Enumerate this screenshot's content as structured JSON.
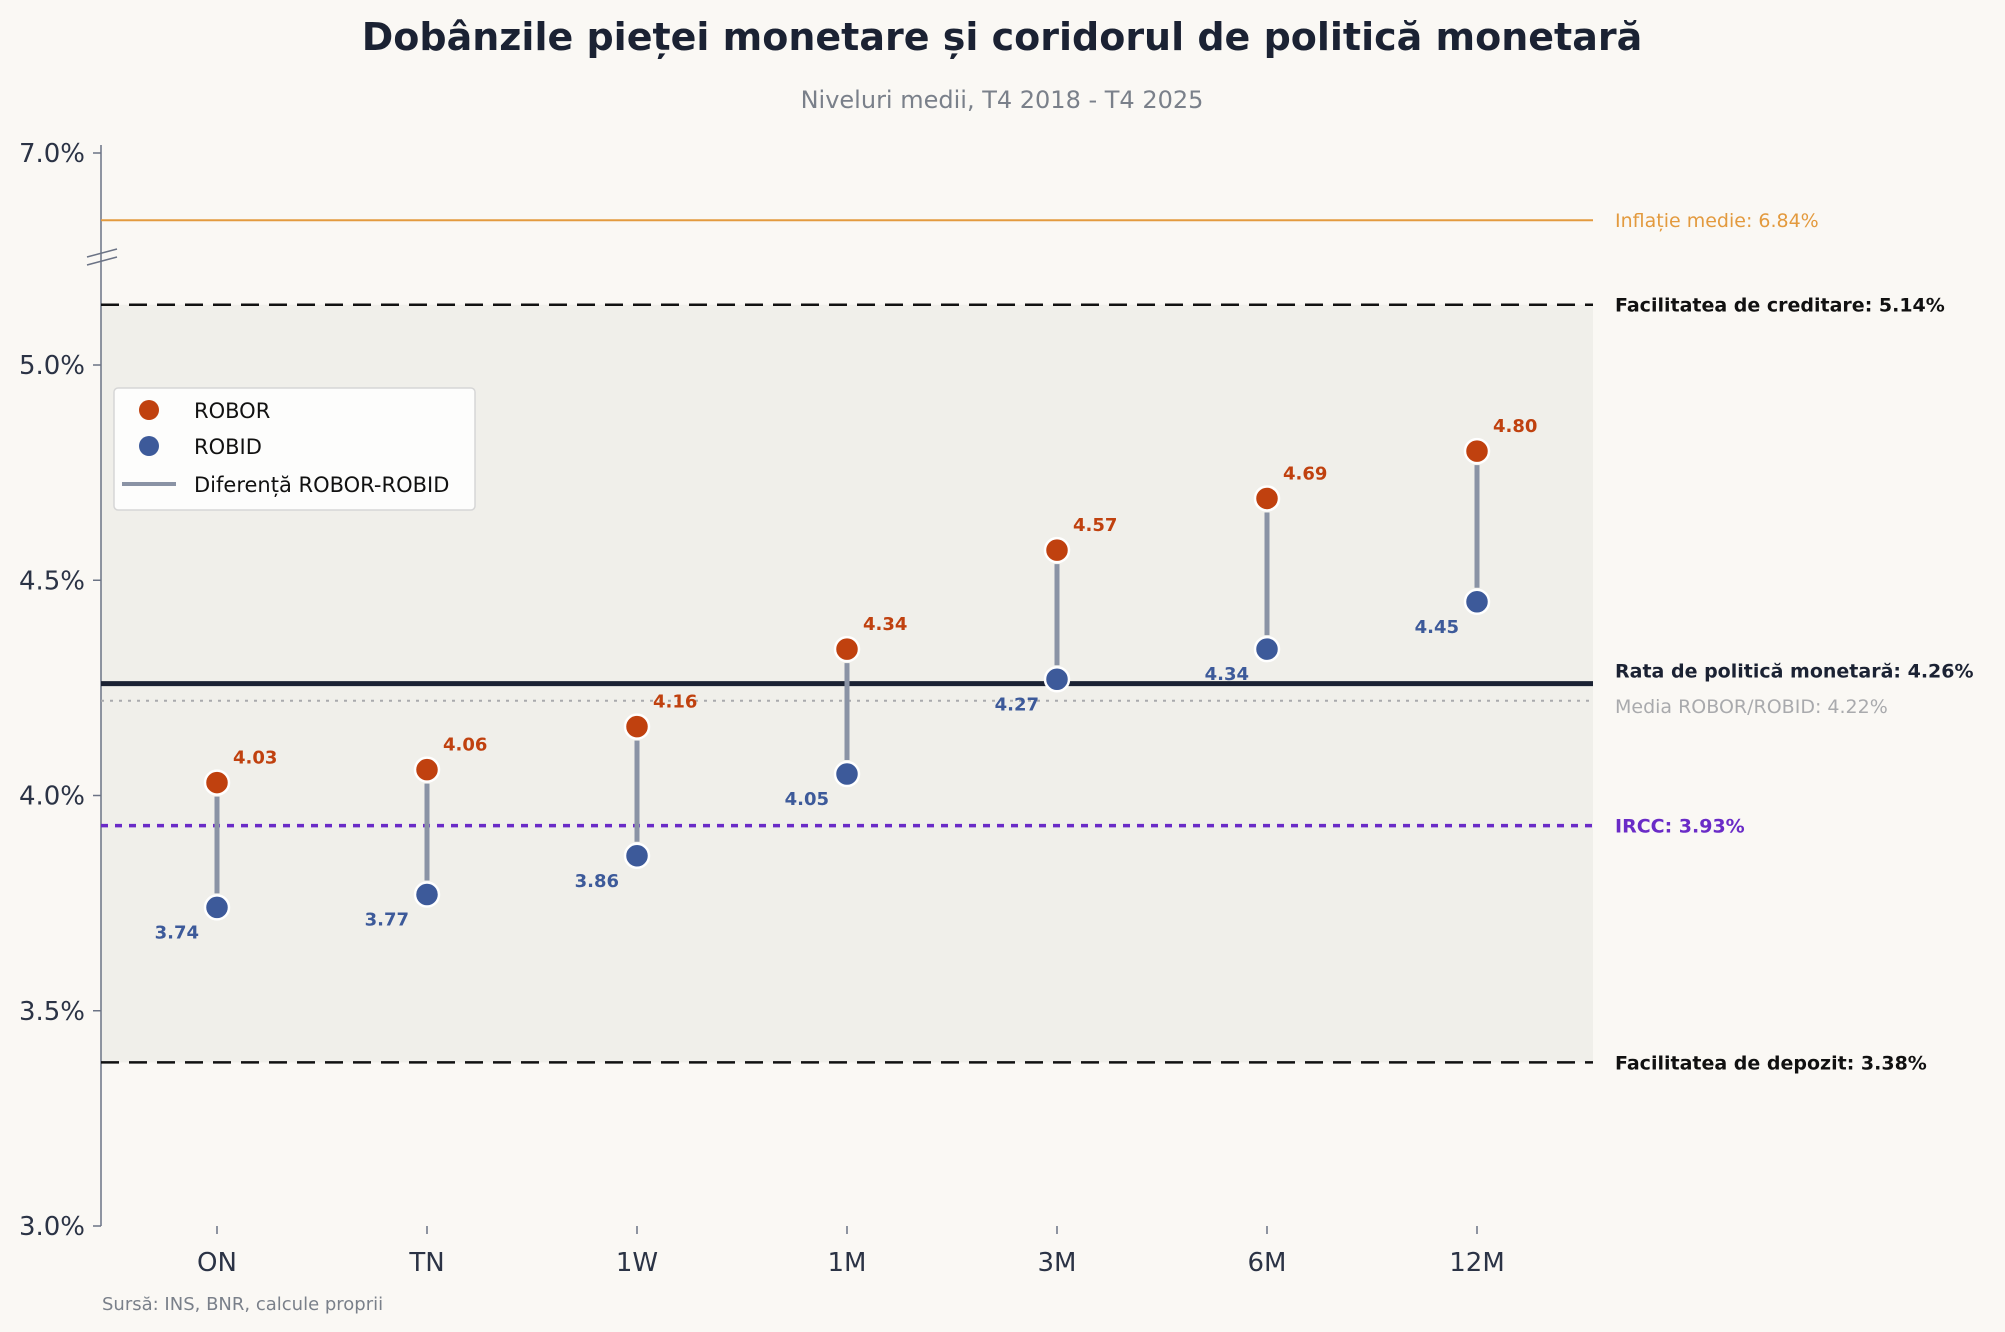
{
  "chart_data": {
    "type": "dumbbell",
    "title": "Dobânzile pieței monetare și coridorul de politică monetară",
    "subtitle": "Niveluri medii, T4 2018 - T4 2025",
    "source": "Sursă: INS, BNR, calcule proprii",
    "categories": [
      "ON",
      "TN",
      "1W",
      "1M",
      "3M",
      "6M",
      "12M"
    ],
    "series": [
      {
        "name": "ROBOR",
        "color": "#c0410f",
        "values": [
          4.03,
          4.06,
          4.16,
          4.34,
          4.57,
          4.69,
          4.8
        ],
        "labels": [
          "4.03",
          "4.06",
          "4.16",
          "4.34",
          "4.57",
          "4.69",
          "4.80"
        ]
      },
      {
        "name": "ROBID",
        "color": "#3d5a9a",
        "values": [
          3.74,
          3.77,
          3.86,
          4.05,
          4.27,
          4.34,
          4.45
        ],
        "labels": [
          "3.74",
          "3.77",
          "3.86",
          "4.05",
          "4.27",
          "4.34",
          "4.45"
        ]
      }
    ],
    "spread_legend": "Diferență ROBOR-ROBID",
    "yticks": [
      "3.0%",
      "3.5%",
      "4.0%",
      "4.5%",
      "5.0%",
      "7.0%"
    ],
    "ylim": [
      3.0,
      5.5
    ],
    "y_break": {
      "lower_max": 5.5,
      "upper_value": 7.0
    },
    "reference_lines": [
      {
        "key": "lending",
        "value": 5.14,
        "label": "Facilitatea de creditare: 5.14%",
        "color": "#111111",
        "style": "dashed",
        "bold": true
      },
      {
        "key": "policy",
        "value": 4.26,
        "label": "Rata de politică monetară: 4.26%",
        "color": "#1b2233",
        "style": "solid",
        "bold": true
      },
      {
        "key": "mean",
        "value": 4.22,
        "label": "Media ROBOR/ROBID: 4.22%",
        "color": "#a9aaad",
        "style": "dotted",
        "bold": false
      },
      {
        "key": "ircc",
        "value": 3.93,
        "label": "IRCC: 3.93%",
        "color": "#6a2bc7",
        "style": "dotted",
        "bold": true
      },
      {
        "key": "deposit",
        "value": 3.38,
        "label": "Facilitatea de depozit: 3.38%",
        "color": "#111111",
        "style": "dashed",
        "bold": true
      }
    ],
    "inflation": {
      "value": 6.84,
      "label": "Inflație medie: 6.84%",
      "color": "#e39a3e"
    },
    "corridor_shaded": true,
    "legend_position": "top-left",
    "grid": false
  }
}
